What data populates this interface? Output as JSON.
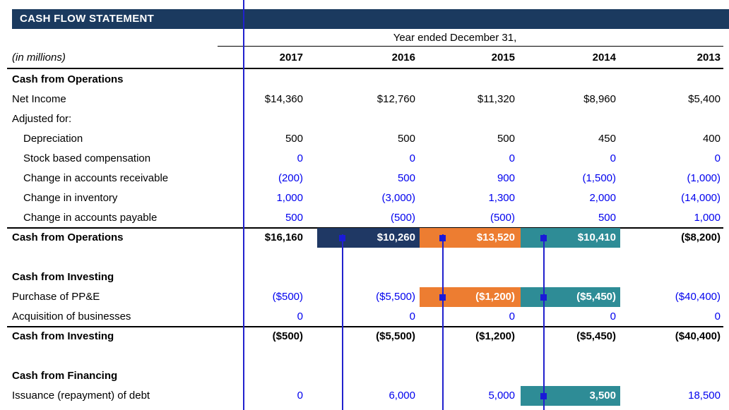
{
  "title": "CASH FLOW STATEMENT",
  "units_note": "(in millions)",
  "header": {
    "span_label": "Year ended December 31,",
    "years": [
      "2017",
      "2016",
      "2015",
      "2014",
      "2013"
    ]
  },
  "colors": {
    "title_bar": "#1B3A5F",
    "highlight_navy": "#1F3864",
    "highlight_orange": "#ED7D31",
    "highlight_teal": "#2E8C96",
    "input_blue": "#0000EE",
    "callout_blue": "#2121CE",
    "marker_blue": "#1A1AD8"
  },
  "table": {
    "rows": [
      {
        "type": "section",
        "label": "Cash from Operations"
      },
      {
        "type": "item",
        "label": "Net Income",
        "num_color": "black",
        "values": [
          "$14,360",
          "$12,760",
          "$11,320",
          "$8,960",
          "$5,400"
        ]
      },
      {
        "type": "item",
        "label": "Adjusted for:"
      },
      {
        "type": "indent",
        "label": "Depreciation",
        "num_color": "black",
        "values": [
          "500",
          "500",
          "500",
          "450",
          "400"
        ]
      },
      {
        "type": "indent",
        "label": "Stock based compensation",
        "num_color": "blue",
        "values": [
          "0",
          "0",
          "0",
          "0",
          "0"
        ]
      },
      {
        "type": "indent",
        "label": "Change in accounts receivable",
        "num_color": "blue",
        "values": [
          "(200)",
          "500",
          "900",
          "(1,500)",
          "(1,000)"
        ]
      },
      {
        "type": "indent",
        "label": "Change in inventory",
        "num_color": "blue",
        "values": [
          "1,000",
          "(3,000)",
          "1,300",
          "2,000",
          "(14,000)"
        ]
      },
      {
        "type": "indent",
        "label": "Change in accounts payable",
        "num_color": "blue",
        "values": [
          "500",
          "(500)",
          "(500)",
          "500",
          "1,000"
        ]
      },
      {
        "type": "total",
        "label": "Cash from Operations",
        "topline": true,
        "num_color": "black",
        "values": [
          "$16,160",
          "$10,260",
          "$13,520",
          "$10,410",
          "($8,200)"
        ],
        "highlights": [
          null,
          "navy",
          "orange",
          "teal",
          null
        ]
      },
      {
        "type": "blank"
      },
      {
        "type": "section",
        "label": "Cash from Investing"
      },
      {
        "type": "item",
        "label": "Purchase of PP&E",
        "num_color": "blue",
        "values": [
          "($500)",
          "($5,500)",
          "($1,200)",
          "($5,450)",
          "($40,400)"
        ],
        "highlights": [
          null,
          null,
          "orange",
          "teal",
          null
        ]
      },
      {
        "type": "item",
        "label": "Acquisition of businesses",
        "num_color": "blue",
        "values": [
          "0",
          "0",
          "0",
          "0",
          "0"
        ]
      },
      {
        "type": "total",
        "label": "Cash from Investing",
        "topline": true,
        "num_color": "black",
        "values": [
          "($500)",
          "($5,500)",
          "($1,200)",
          "($5,450)",
          "($40,400)"
        ]
      },
      {
        "type": "blank"
      },
      {
        "type": "section",
        "label": "Cash from Financing"
      },
      {
        "type": "item",
        "label": "Issuance (repayment) of debt",
        "num_color": "blue",
        "values": [
          "0",
          "6,000",
          "5,000",
          "3,500",
          "18,500"
        ],
        "highlights": [
          null,
          null,
          null,
          "teal",
          null
        ]
      }
    ]
  }
}
